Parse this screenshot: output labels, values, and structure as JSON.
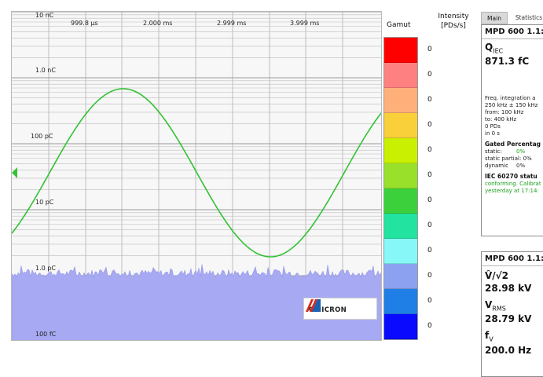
{
  "plot": {
    "y_labels": [
      "10 nC",
      "1.0 nC",
      "100 pC",
      "10 pC",
      "1.0 pC",
      "100 fC"
    ],
    "x_labels": [
      "999.8 µs",
      "2.000 ms",
      "2.999 ms",
      "3.999 ms"
    ],
    "logo_text": "OMICRON",
    "colors": {
      "grid": "#bdbdbd",
      "noise": "#a7a9f2",
      "sine": "#33c233"
    }
  },
  "gamut": {
    "title": "Gamut",
    "intensity_title_line1": "Intensity",
    "intensity_title_line2": "[PDs/s]",
    "colors": [
      "#ff0000",
      "#ff8080",
      "#ffb07a",
      "#f9cf3a",
      "#c8f000",
      "#99e02a",
      "#3cd13c",
      "#22e3a0",
      "#88f7f7",
      "#8ca2f0",
      "#1f7fe6",
      "#0a0aff"
    ],
    "intensity_values": [
      "0",
      "0",
      "0",
      "0",
      "0",
      "0",
      "0",
      "0",
      "0",
      "0",
      "0",
      "0"
    ]
  },
  "tabs": {
    "main": "Main",
    "statistics": "Statistics"
  },
  "card1": {
    "title": "MPD 600 1.1:",
    "q_symbol": "Q",
    "q_sub": "IEC",
    "q_value": "871.3 fC",
    "freq_label": "Freq. integration a",
    "freq_range": "250 kHz ± 150 kHz",
    "from": "from:  100 kHz",
    "to": "to:     400 kHz",
    "pds": "0 PDs",
    "in_time": "in 0 s",
    "gated_title": "Gated Percentag",
    "static_k": "static:",
    "static_v": "0%",
    "static_partial": "static partial: 0%",
    "dynamic_k": "dynamic",
    "dynamic_v": "0%",
    "iec_status": "IEC 60270 statu",
    "conforming_1": "conforming. Calibrat",
    "conforming_2": "yesterday at 17:14:"
  },
  "card2": {
    "title": "MPD 600 1.1:",
    "v1_symbol": "V̂/√2",
    "v1_value": "28.98 kV",
    "v2_symbol": "V",
    "v2_sub": "RMS",
    "v2_value": "28.79 kV",
    "f_symbol": "f",
    "f_sub": "V",
    "f_value": "200.0 Hz"
  }
}
